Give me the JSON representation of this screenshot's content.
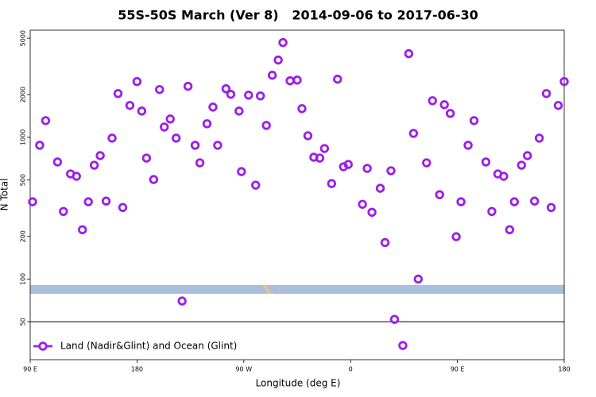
{
  "chart_data": {
    "type": "scatter",
    "title": "55S-50S March (Ver 8)   2014-09-06 to 2017-06-30",
    "x_label": "Longitude (deg E)",
    "y_label": "N Total",
    "xlim": [
      90,
      540
    ],
    "ylim": [
      27,
      5700
    ],
    "log_y": true,
    "xticks": [
      {
        "value": 90,
        "label": "90 E"
      },
      {
        "value": 180,
        "label": "180"
      },
      {
        "value": 270,
        "label": "90 W"
      },
      {
        "value": 360,
        "label": "0"
      },
      {
        "value": 450,
        "label": "90 E"
      },
      {
        "value": 540,
        "label": "180"
      }
    ],
    "yticks": [
      50,
      100,
      200,
      500,
      1000,
      2000,
      5000
    ],
    "hline": 50,
    "legend": "bottom-left",
    "x": [
      92,
      98,
      103,
      113,
      118,
      124,
      129,
      134,
      139,
      144,
      149,
      154,
      159,
      164,
      168,
      174,
      180,
      184,
      188,
      194,
      199,
      203,
      208,
      213,
      218,
      223,
      229,
      233,
      239,
      244,
      248,
      255,
      259,
      266,
      268,
      274,
      280,
      284,
      289,
      294,
      299,
      303,
      309,
      315,
      319,
      324,
      329,
      334,
      338,
      344,
      349,
      354,
      358,
      370,
      374,
      378,
      385,
      389,
      394,
      397,
      404,
      409,
      413,
      417,
      424,
      429,
      435,
      439,
      444,
      449,
      453,
      459,
      464,
      474,
      479,
      484,
      489,
      494,
      498,
      504,
      509,
      515,
      519,
      525,
      529,
      535,
      540
    ],
    "series": [
      {
        "name": "Land (Nadir&Glint) and Ocean (Glint)",
        "color": "#9b1fe8",
        "values": [
          351,
          879,
          1312,
          670,
          300,
          552,
          531,
          223,
          351,
          636,
          743,
          355,
          987,
          2037,
          320,
          1679,
          2474,
          1532,
          714,
          504,
          2173,
          1183,
          1347,
          987,
          70,
          2290,
          879,
          661,
          1247,
          1634,
          879,
          2202,
          2011,
          1532,
          573,
          1985,
          460,
          1960,
          1214,
          2742,
          3508,
          4663,
          2506,
          2536,
          1594,
          1026,
          724,
          714,
          834,
          472,
          2571,
          620,
          644,
          337,
          604,
          296,
          437,
          181,
          581,
          52,
          34,
          3890,
          1067,
          100,
          661,
          1813,
          394,
          1699,
          1475,
          199,
          351,
          879,
          1312,
          670,
          300,
          552,
          531,
          223,
          351,
          636,
          743,
          355,
          987,
          2037,
          320,
          1679,
          2474
        ]
      }
    ]
  }
}
